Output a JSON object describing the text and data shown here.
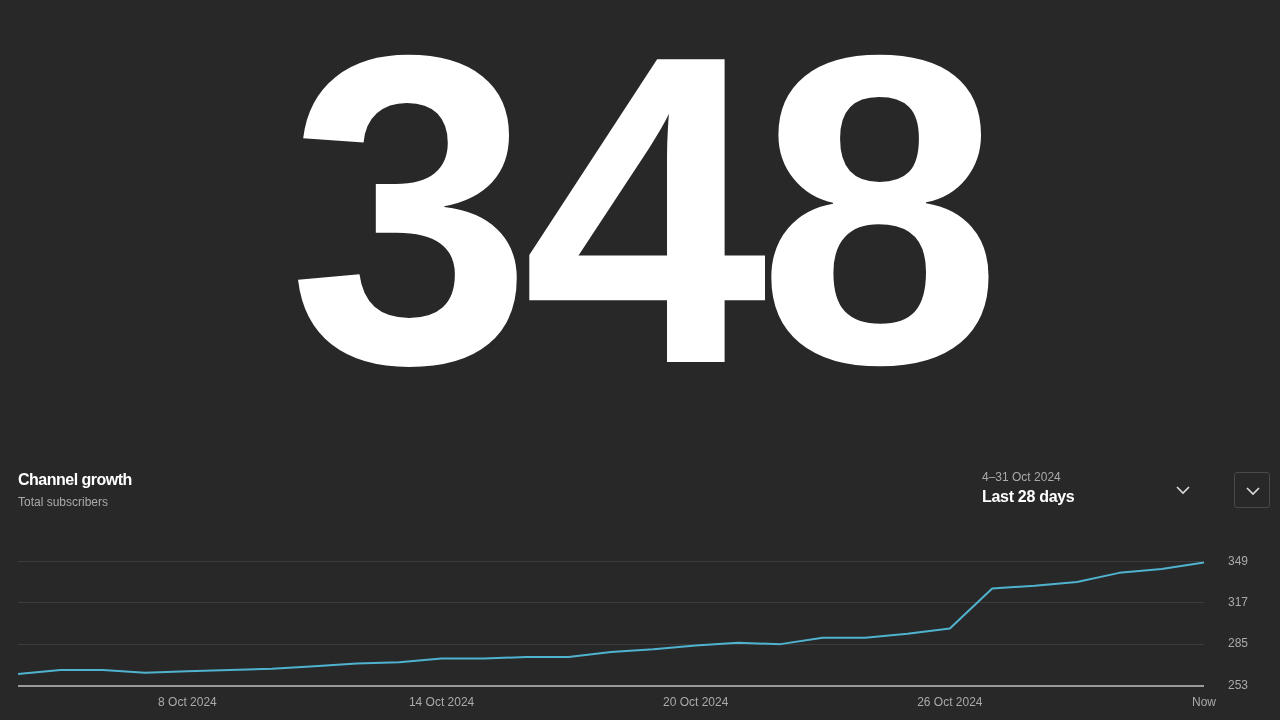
{
  "chart_data": {
    "type": "line",
    "title": "Channel growth",
    "subtitle": "Total subscribers",
    "annotations": [
      "348",
      "4–31 Oct 2024",
      "Last 28 days"
    ],
    "categories": [
      null,
      null,
      null,
      null,
      "8 Oct 2024",
      null,
      null,
      null,
      null,
      null,
      "14 Oct 2024",
      null,
      null,
      null,
      null,
      null,
      "20 Oct 2024",
      null,
      null,
      null,
      null,
      null,
      "26 Oct 2024",
      null,
      null,
      null,
      null,
      null,
      "Now"
    ],
    "series": [
      {
        "color": "#4fb3cf",
        "values": [
          262,
          265,
          265,
          263,
          264,
          265,
          266,
          268,
          270,
          271,
          274,
          274,
          275,
          275,
          279,
          281,
          284,
          286,
          285,
          290,
          290,
          293,
          297,
          328,
          330,
          333,
          340,
          343,
          348
        ]
      }
    ],
    "ylim": [
      253,
      349
    ],
    "yticks": [
      253,
      285,
      317,
      349
    ],
    "grid": "y",
    "legend": false,
    "marker": "none",
    "line_style": "solid"
  }
}
